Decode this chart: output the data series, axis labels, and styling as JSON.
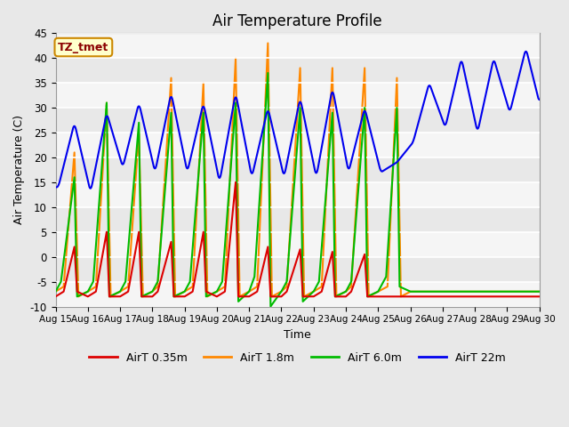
{
  "title": "Air Temperature Profile",
  "xlabel": "Time",
  "ylabel": "Air Temperature (C)",
  "ylim": [
    -10,
    45
  ],
  "xlim": [
    0,
    360
  ],
  "annotation": "TZ_tmet",
  "fig_facecolor": "#e8e8e8",
  "ax_facecolor": "#e8e8e8",
  "series_red": {
    "label": "AirT 0.35m",
    "color": "#dd0000"
  },
  "series_orange": {
    "label": "AirT 1.8m",
    "color": "#ff8800"
  },
  "series_green": {
    "label": "AirT 6.0m",
    "color": "#00bb00"
  },
  "series_blue": {
    "label": "AirT 22m",
    "color": "#0000ee"
  },
  "tick_labels": [
    "Aug 15",
    "Aug 16",
    "Aug 17",
    "Aug 18",
    "Aug 19",
    "Aug 20",
    "Aug 21",
    "Aug 22",
    "Aug 23",
    "Aug 24",
    "Aug 25",
    "Aug 26",
    "Aug 27",
    "Aug 28",
    "Aug 29",
    "Aug 30"
  ],
  "tick_positions": [
    0,
    24,
    48,
    72,
    96,
    120,
    144,
    168,
    192,
    216,
    240,
    264,
    288,
    312,
    336,
    360
  ],
  "yticks": [
    -10,
    -5,
    0,
    5,
    10,
    15,
    20,
    25,
    30,
    35,
    40,
    45
  ],
  "band_color": "white",
  "band_alpha": 0.6,
  "red_ctrl_t": [
    0,
    6,
    14,
    16,
    24,
    24,
    30,
    38,
    40,
    48,
    48,
    54,
    62,
    64,
    72,
    72,
    76,
    86,
    88,
    96,
    96,
    102,
    110,
    112,
    120,
    120,
    126,
    134,
    136,
    144,
    144,
    150,
    158,
    160,
    168,
    168,
    172,
    182,
    184,
    192,
    192,
    198,
    206,
    208,
    216,
    216,
    220,
    230,
    232,
    240,
    240,
    260,
    280,
    300,
    320,
    340,
    360
  ],
  "red_ctrl_v": [
    -8,
    -7,
    2,
    -7,
    -8,
    -8,
    -7,
    5,
    -8,
    -8,
    -8,
    -7,
    5,
    -8,
    -8,
    -8,
    -7,
    3,
    -8,
    -8,
    -8,
    -7,
    5,
    -7,
    -8,
    -8,
    -7,
    15,
    -8,
    -8,
    -8,
    -7,
    2,
    -8,
    -8,
    -8,
    -7,
    1.5,
    -8,
    -8,
    -8,
    -7,
    1.0,
    -8,
    -8,
    -8,
    -7,
    0.5,
    -8,
    -8,
    -8,
    -8,
    -8,
    -8,
    -8,
    -8,
    -8
  ],
  "ora_ctrl_t": [
    0,
    6,
    14,
    17,
    24,
    24,
    30,
    38,
    41,
    48,
    48,
    54,
    62,
    65,
    72,
    72,
    76,
    86,
    89,
    96,
    96,
    102,
    110,
    113,
    120,
    120,
    126,
    134,
    137,
    144,
    144,
    150,
    158,
    161,
    168,
    168,
    172,
    182,
    185,
    192,
    192,
    198,
    206,
    209,
    216,
    216,
    220,
    230,
    233,
    240,
    240,
    247,
    254,
    257,
    264,
    264,
    360
  ],
  "ora_ctrl_v": [
    -7,
    -6,
    21,
    -8,
    -7,
    -7,
    -6,
    31,
    -8,
    -7,
    -7,
    -6,
    25,
    -8,
    -7,
    -7,
    -6,
    36,
    -8,
    -7,
    -7,
    -6,
    35,
    -8,
    -7,
    -7,
    -6,
    40,
    -8,
    -7,
    -7,
    -6,
    43,
    -8,
    -7,
    -7,
    -6,
    38,
    -8,
    -7,
    -7,
    -6,
    38,
    -8,
    -7,
    -7,
    -6,
    38,
    -8,
    -7,
    -7,
    -6,
    36,
    -8,
    -7,
    -7,
    -7
  ],
  "grn_ctrl_t": [
    0,
    4,
    14,
    16,
    24,
    24,
    28,
    38,
    40,
    48,
    48,
    52,
    62,
    64,
    72,
    72,
    76,
    86,
    88,
    96,
    96,
    100,
    110,
    112,
    120,
    120,
    124,
    134,
    136,
    144,
    144,
    148,
    158,
    160,
    168,
    168,
    172,
    182,
    184,
    192,
    192,
    196,
    206,
    208,
    216,
    216,
    220,
    230,
    232,
    240,
    240,
    246,
    254,
    256,
    264,
    264,
    360
  ],
  "grn_ctrl_v": [
    -7,
    -5,
    16,
    -8,
    -7,
    -7,
    -5,
    31,
    -8,
    -7,
    -7,
    -5,
    27,
    -8,
    -7,
    -7,
    -5,
    29,
    -8,
    -7,
    -7,
    -5,
    29,
    -8,
    -7,
    -7,
    -5,
    31,
    -9,
    -7,
    -7,
    -4,
    37,
    -10,
    -7,
    -7,
    -5,
    30,
    -9,
    -7,
    -7,
    -5,
    29,
    -8,
    -7,
    -7,
    -5,
    30,
    -8,
    -7,
    -7,
    -4,
    30,
    -6,
    -7,
    -7,
    -7
  ],
  "blue_day_peaks": [
    27,
    29,
    31,
    33,
    31,
    33,
    30,
    32,
    34,
    30,
    19,
    35,
    40,
    40,
    42
  ],
  "blue_day_mins": [
    14,
    13,
    18,
    17,
    17,
    15,
    16,
    16,
    16,
    17,
    17,
    23,
    26,
    25,
    29
  ],
  "blue_peak_hour": 14,
  "blue_min_hour": 2
}
